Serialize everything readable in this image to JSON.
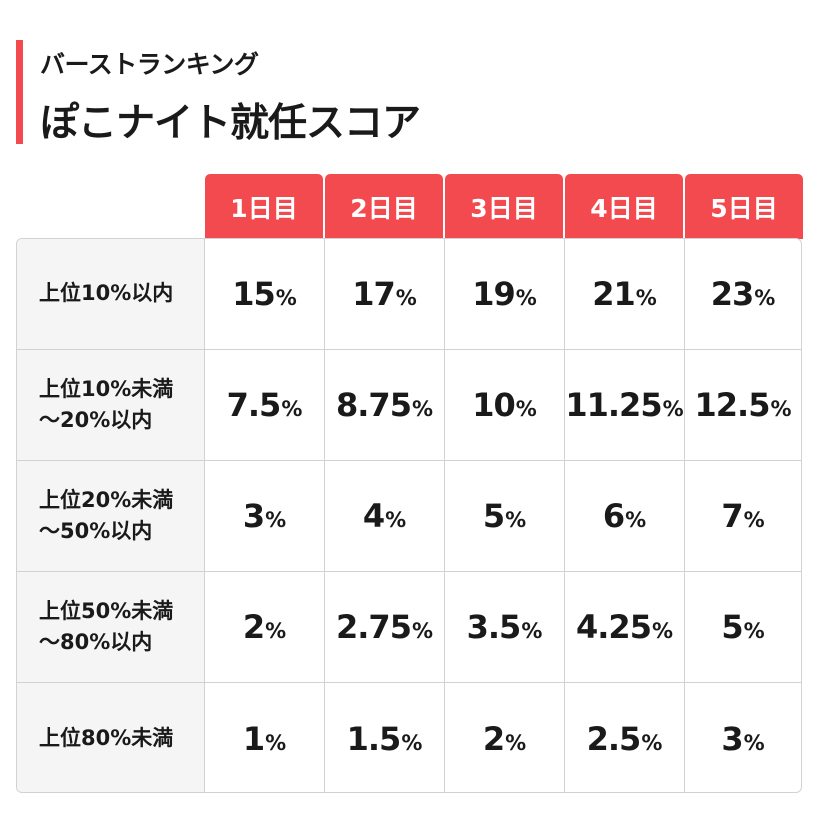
{
  "header": {
    "subtitle": "バーストランキング",
    "title": "ぽこナイト就任スコア",
    "accent_color": "#f24a4e"
  },
  "table": {
    "columns": [
      "1日目",
      "2日目",
      "3日目",
      "4日目",
      "5日目"
    ],
    "unit": "%",
    "rows": [
      {
        "label": "上位10%以内",
        "values": [
          "15",
          "17",
          "19",
          "21",
          "23"
        ]
      },
      {
        "label": "上位10%未満\n～20%以内",
        "values": [
          "7.5",
          "8.75",
          "10",
          "11.25",
          "12.5"
        ]
      },
      {
        "label": "上位20%未満\n～50%以内",
        "values": [
          "3",
          "4",
          "5",
          "6",
          "7"
        ]
      },
      {
        "label": "上位50%未満\n～80%以内",
        "values": [
          "2",
          "2.75",
          "3.5",
          "4.25",
          "5"
        ]
      },
      {
        "label": "上位80%未満",
        "values": [
          "1",
          "1.5",
          "2",
          "2.5",
          "3"
        ]
      }
    ]
  }
}
